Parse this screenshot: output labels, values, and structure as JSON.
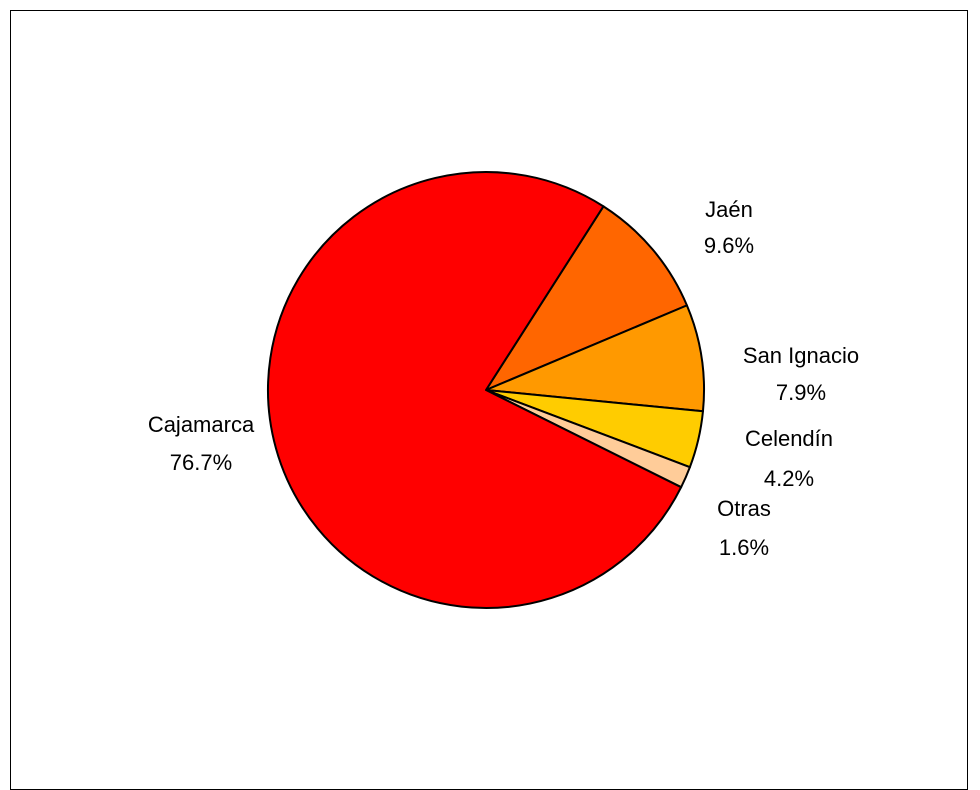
{
  "chart_data": {
    "type": "pie",
    "start_angle_deg": 57.4,
    "direction": "clockwise",
    "slices": [
      {
        "name": "Jaén",
        "value": 9.6,
        "label": "9.6%",
        "color": "#FF6600"
      },
      {
        "name": "San Ignacio",
        "value": 7.9,
        "label": "7.9%",
        "color": "#FF9900"
      },
      {
        "name": "Celendín",
        "value": 4.2,
        "label": "4.2%",
        "color": "#FFCC00"
      },
      {
        "name": "Otras",
        "value": 1.6,
        "label": "1.6%",
        "color": "#FFCC99"
      },
      {
        "name": "Cajamarca",
        "value": 76.7,
        "label": "76.7%",
        "color": "#FF0000"
      }
    ],
    "outline_color": "#000000"
  }
}
